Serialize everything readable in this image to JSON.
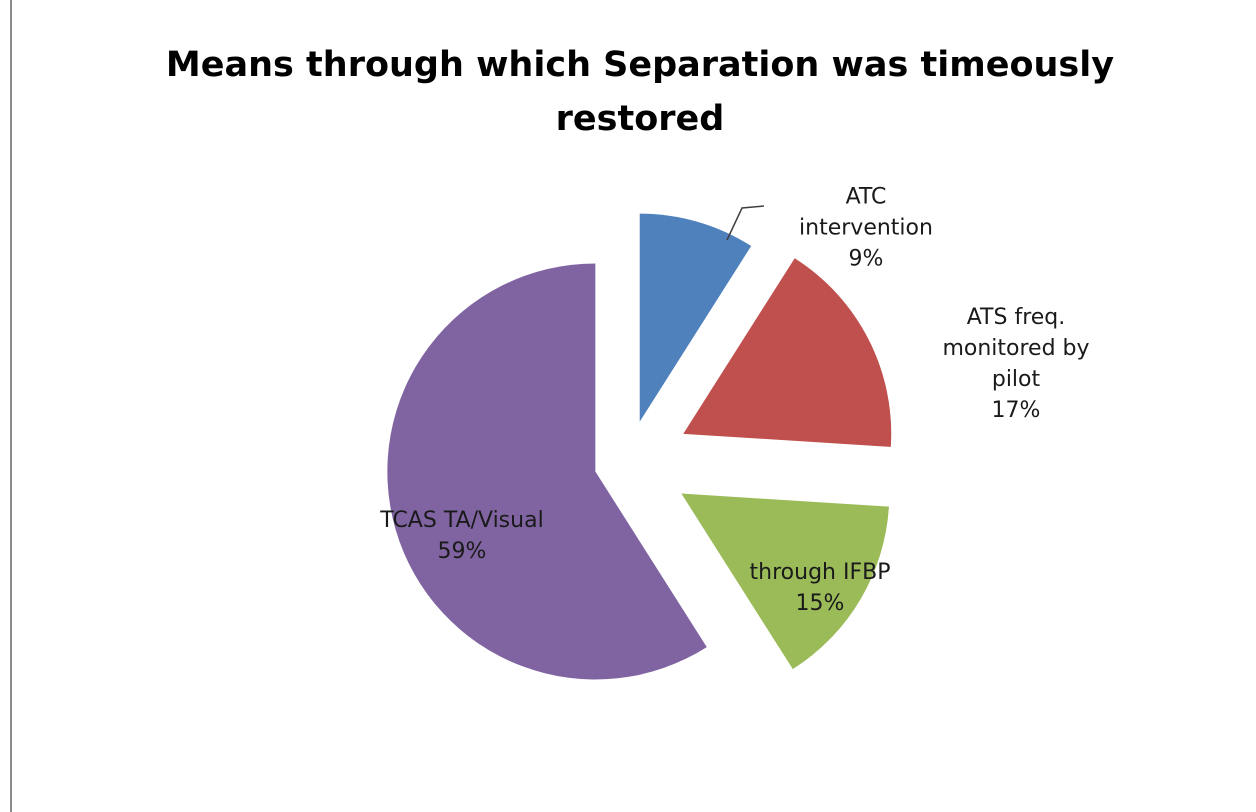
{
  "chart_data": {
    "type": "pie",
    "title": "Means through which Separation was timeously restored",
    "categories": [
      "ATC intervention",
      "ATS freq. monitored by pilot",
      "through IFBP",
      "TCAS TA/Visual"
    ],
    "values": [
      9,
      17,
      15,
      59
    ],
    "value_labels": [
      "9%",
      "17%",
      "15%",
      "59%"
    ],
    "colors": [
      "#4f81bd",
      "#c0504d",
      "#9bbb59",
      "#8064a2"
    ]
  }
}
